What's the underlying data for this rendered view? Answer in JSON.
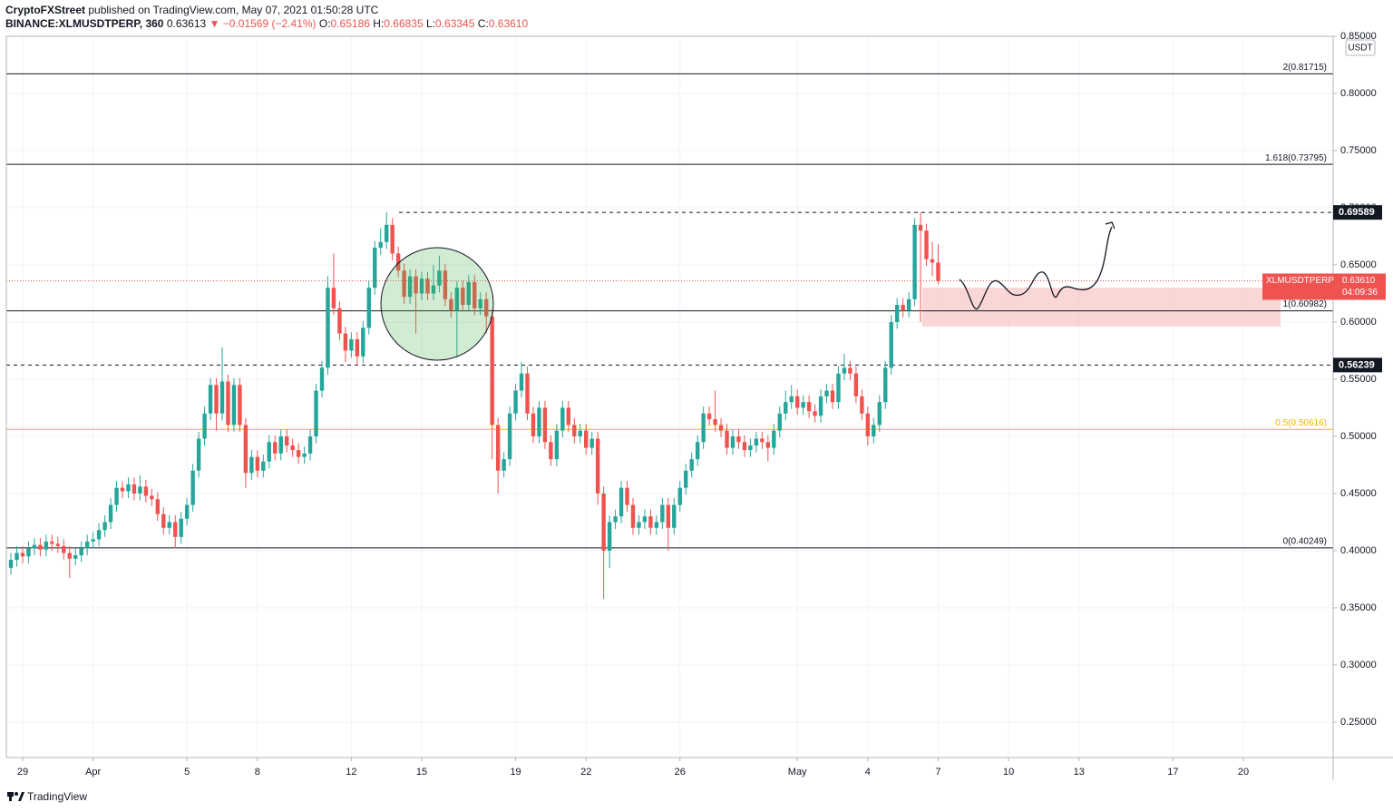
{
  "header": {
    "author": "CryptoFXStreet",
    "published": "published on TradingView.com, May 07, 2021 01:50:28 UTC"
  },
  "legend": {
    "symbol": "BINANCE:XLMUSDTPERP, 360",
    "last": "0.63613",
    "change": "▼ −0.01569 (−2.41%)",
    "ohlc": [
      {
        "label": "O:",
        "value": "0.65186"
      },
      {
        "label": "H:",
        "value": "0.66835"
      },
      {
        "label": "L:",
        "value": "0.63345"
      },
      {
        "label": "C:",
        "value": "0.63610"
      }
    ]
  },
  "footer": "TradingView",
  "chart_data": {
    "type": "candlestick",
    "currency": "USDT",
    "up_color": "#26a69a",
    "down_color": "#ef5350",
    "xlim": [
      -0.78,
      225.3
    ],
    "xticks": [
      {
        "value": 2,
        "label": "29"
      },
      {
        "value": 14,
        "label": "Apr"
      },
      {
        "value": 30,
        "label": "5"
      },
      {
        "value": 42,
        "label": "8"
      },
      {
        "value": 58,
        "label": "12"
      },
      {
        "value": 70,
        "label": "15"
      },
      {
        "value": 86,
        "label": "19"
      },
      {
        "value": 98,
        "label": "22"
      },
      {
        "value": 114,
        "label": "26"
      },
      {
        "value": 134,
        "label": "May"
      },
      {
        "value": 146,
        "label": "4"
      },
      {
        "value": 158,
        "label": "7"
      },
      {
        "value": 170,
        "label": "10"
      },
      {
        "value": 182,
        "label": "13"
      },
      {
        "value": 198,
        "label": "17"
      },
      {
        "value": 210,
        "label": "20"
      }
    ],
    "ylim": [
      0.219,
      0.85
    ],
    "yticks": [
      {
        "value": 0.25,
        "label": "0.25000"
      },
      {
        "value": 0.3,
        "label": "0.30000"
      },
      {
        "value": 0.35,
        "label": "0.35000"
      },
      {
        "value": 0.4,
        "label": "0.40000"
      },
      {
        "value": 0.45,
        "label": "0.45000"
      },
      {
        "value": 0.5,
        "label": "0.50000"
      },
      {
        "value": 0.55,
        "label": "0.55000"
      },
      {
        "value": 0.6,
        "label": "0.60000"
      },
      {
        "value": 0.65,
        "label": "0.65000"
      },
      {
        "value": 0.7,
        "label": "0.70000"
      },
      {
        "value": 0.75,
        "label": "0.75000"
      },
      {
        "value": 0.8,
        "label": "0.80000"
      },
      {
        "value": 0.85,
        "label": "0.85000"
      }
    ],
    "grid": true,
    "levels": [
      {
        "value": 0.81715,
        "label": "2(0.81715)",
        "color": "#131722"
      },
      {
        "value": 0.73795,
        "label": "1.618(0.73795)",
        "color": "#131722"
      },
      {
        "value": 0.60982,
        "label": "1(0.60982)",
        "color": "#131722"
      },
      {
        "value": 0.50616,
        "label": "0.5(0.50616)",
        "color": "#f0b400"
      },
      {
        "value": 0.40249,
        "label": "0(0.40249)",
        "color": "#131722"
      }
    ],
    "price_lines": [
      {
        "value": 0.69589,
        "label": "0.69589"
      },
      {
        "value": 0.56239,
        "label": "0.56239"
      }
    ],
    "current": {
      "name": "XLMUSDTPERP",
      "value": 0.6361,
      "label": "0.63610",
      "countdown": "04:09:36"
    },
    "open": [
      0.385,
      0.392,
      0.398,
      0.395,
      0.402,
      0.405,
      0.401,
      0.408,
      0.406,
      0.404,
      0.398,
      0.393,
      0.396,
      0.402,
      0.408,
      0.41,
      0.418,
      0.425,
      0.44,
      0.455,
      0.452,
      0.458,
      0.45,
      0.456,
      0.448,
      0.445,
      0.432,
      0.42,
      0.425,
      0.412,
      0.428,
      0.44,
      0.47,
      0.498,
      0.52,
      0.545,
      0.52,
      0.548,
      0.51,
      0.545,
      0.51,
      0.468,
      0.482,
      0.47,
      0.478,
      0.495,
      0.485,
      0.5,
      0.492,
      0.488,
      0.482,
      0.485,
      0.5,
      0.54,
      0.56,
      0.63,
      0.612,
      0.59,
      0.575,
      0.585,
      0.57,
      0.595,
      0.63,
      0.665,
      0.67,
      0.685,
      0.66,
      0.645,
      0.622,
      0.64,
      0.625,
      0.638,
      0.625,
      0.632,
      0.645,
      0.62,
      0.61,
      0.63,
      0.615,
      0.635,
      0.612,
      0.62,
      0.605,
      0.51,
      0.47,
      0.48,
      0.52,
      0.54,
      0.555,
      0.52,
      0.5,
      0.525,
      0.495,
      0.48,
      0.505,
      0.525,
      0.51,
      0.5,
      0.505,
      0.49,
      0.498,
      0.45,
      0.4,
      0.425,
      0.43,
      0.455,
      0.44,
      0.42,
      0.425,
      0.43,
      0.42,
      0.425,
      0.44,
      0.42,
      0.44,
      0.455,
      0.47,
      0.48,
      0.495,
      0.52,
      0.515,
      0.51,
      0.505,
      0.49,
      0.5,
      0.495,
      0.488,
      0.492,
      0.498,
      0.495,
      0.49,
      0.505,
      0.52,
      0.53,
      0.535,
      0.525,
      0.53,
      0.522,
      0.518,
      0.535,
      0.54,
      0.53,
      0.555,
      0.56,
      0.555,
      0.535,
      0.52,
      0.5,
      0.51,
      0.53,
      0.56,
      0.6,
      0.615,
      0.61,
      0.62,
      0.685,
      0.68,
      0.655,
      0.652
    ],
    "high": [
      0.398,
      0.404,
      0.404,
      0.408,
      0.411,
      0.411,
      0.414,
      0.414,
      0.412,
      0.41,
      0.404,
      0.402,
      0.408,
      0.414,
      0.416,
      0.424,
      0.431,
      0.446,
      0.461,
      0.461,
      0.464,
      0.464,
      0.466,
      0.462,
      0.454,
      0.451,
      0.438,
      0.431,
      0.431,
      0.434,
      0.446,
      0.476,
      0.504,
      0.526,
      0.551,
      0.551,
      0.578,
      0.554,
      0.551,
      0.551,
      0.516,
      0.488,
      0.488,
      0.484,
      0.501,
      0.501,
      0.506,
      0.506,
      0.498,
      0.494,
      0.491,
      0.506,
      0.546,
      0.566,
      0.64,
      0.66,
      0.618,
      0.596,
      0.591,
      0.591,
      0.601,
      0.636,
      0.671,
      0.682,
      0.696,
      0.691,
      0.666,
      0.651,
      0.646,
      0.646,
      0.644,
      0.644,
      0.65,
      0.658,
      0.651,
      0.626,
      0.636,
      0.636,
      0.641,
      0.641,
      0.626,
      0.626,
      0.611,
      0.516,
      0.486,
      0.526,
      0.546,
      0.565,
      0.561,
      0.526,
      0.531,
      0.531,
      0.501,
      0.511,
      0.531,
      0.531,
      0.516,
      0.511,
      0.511,
      0.504,
      0.504,
      0.456,
      0.431,
      0.436,
      0.461,
      0.461,
      0.446,
      0.431,
      0.436,
      0.436,
      0.431,
      0.446,
      0.446,
      0.446,
      0.461,
      0.476,
      0.486,
      0.501,
      0.526,
      0.526,
      0.54,
      0.516,
      0.511,
      0.506,
      0.506,
      0.501,
      0.498,
      0.504,
      0.504,
      0.501,
      0.511,
      0.526,
      0.54,
      0.545,
      0.541,
      0.536,
      0.536,
      0.528,
      0.541,
      0.546,
      0.546,
      0.561,
      0.572,
      0.566,
      0.561,
      0.541,
      0.526,
      0.516,
      0.536,
      0.566,
      0.606,
      0.621,
      0.621,
      0.626,
      0.691,
      0.696,
      0.686,
      0.67,
      0.668
    ],
    "low": [
      0.379,
      0.386,
      0.389,
      0.389,
      0.396,
      0.395,
      0.395,
      0.4,
      0.398,
      0.392,
      0.376,
      0.387,
      0.39,
      0.396,
      0.402,
      0.404,
      0.412,
      0.419,
      0.434,
      0.446,
      0.446,
      0.444,
      0.444,
      0.442,
      0.439,
      0.426,
      0.414,
      0.414,
      0.402,
      0.406,
      0.422,
      0.434,
      0.464,
      0.492,
      0.514,
      0.505,
      0.514,
      0.504,
      0.504,
      0.504,
      0.455,
      0.462,
      0.464,
      0.464,
      0.472,
      0.479,
      0.479,
      0.486,
      0.482,
      0.476,
      0.476,
      0.479,
      0.494,
      0.534,
      0.554,
      0.606,
      0.584,
      0.565,
      0.569,
      0.562,
      0.564,
      0.589,
      0.624,
      0.659,
      0.664,
      0.654,
      0.639,
      0.616,
      0.616,
      0.59,
      0.619,
      0.619,
      0.619,
      0.626,
      0.614,
      0.604,
      0.57,
      0.609,
      0.609,
      0.606,
      0.606,
      0.59,
      0.48,
      0.45,
      0.464,
      0.474,
      0.514,
      0.534,
      0.514,
      0.494,
      0.494,
      0.489,
      0.474,
      0.474,
      0.499,
      0.504,
      0.494,
      0.494,
      0.484,
      0.484,
      0.44,
      0.358,
      0.385,
      0.419,
      0.424,
      0.434,
      0.414,
      0.414,
      0.419,
      0.414,
      0.414,
      0.419,
      0.4,
      0.414,
      0.434,
      0.449,
      0.464,
      0.474,
      0.489,
      0.509,
      0.504,
      0.499,
      0.484,
      0.484,
      0.489,
      0.482,
      0.482,
      0.486,
      0.489,
      0.478,
      0.484,
      0.499,
      0.514,
      0.524,
      0.519,
      0.519,
      0.516,
      0.512,
      0.512,
      0.529,
      0.524,
      0.524,
      0.549,
      0.549,
      0.529,
      0.514,
      0.492,
      0.494,
      0.504,
      0.524,
      0.554,
      0.594,
      0.604,
      0.604,
      0.614,
      0.6,
      0.649,
      0.64,
      0.633
    ],
    "close": [
      0.392,
      0.398,
      0.395,
      0.402,
      0.405,
      0.401,
      0.408,
      0.406,
      0.404,
      0.398,
      0.393,
      0.396,
      0.402,
      0.408,
      0.41,
      0.418,
      0.425,
      0.44,
      0.455,
      0.452,
      0.458,
      0.45,
      0.456,
      0.448,
      0.445,
      0.432,
      0.42,
      0.425,
      0.412,
      0.428,
      0.44,
      0.47,
      0.498,
      0.52,
      0.545,
      0.52,
      0.548,
      0.51,
      0.545,
      0.51,
      0.468,
      0.482,
      0.47,
      0.478,
      0.495,
      0.485,
      0.5,
      0.492,
      0.488,
      0.482,
      0.485,
      0.5,
      0.54,
      0.56,
      0.63,
      0.612,
      0.59,
      0.575,
      0.585,
      0.57,
      0.595,
      0.63,
      0.665,
      0.67,
      0.685,
      0.66,
      0.645,
      0.622,
      0.64,
      0.625,
      0.638,
      0.625,
      0.632,
      0.645,
      0.62,
      0.61,
      0.63,
      0.615,
      0.635,
      0.612,
      0.62,
      0.605,
      0.51,
      0.47,
      0.48,
      0.52,
      0.54,
      0.555,
      0.52,
      0.5,
      0.525,
      0.495,
      0.48,
      0.505,
      0.525,
      0.51,
      0.5,
      0.505,
      0.49,
      0.498,
      0.45,
      0.4,
      0.425,
      0.43,
      0.455,
      0.44,
      0.42,
      0.425,
      0.43,
      0.42,
      0.425,
      0.44,
      0.42,
      0.44,
      0.455,
      0.47,
      0.48,
      0.495,
      0.52,
      0.515,
      0.51,
      0.505,
      0.49,
      0.5,
      0.495,
      0.488,
      0.492,
      0.498,
      0.495,
      0.49,
      0.505,
      0.52,
      0.53,
      0.535,
      0.525,
      0.53,
      0.522,
      0.518,
      0.535,
      0.54,
      0.53,
      0.555,
      0.56,
      0.555,
      0.535,
      0.52,
      0.5,
      0.51,
      0.53,
      0.56,
      0.6,
      0.615,
      0.61,
      0.62,
      0.685,
      0.68,
      0.655,
      0.652,
      0.636
    ]
  }
}
